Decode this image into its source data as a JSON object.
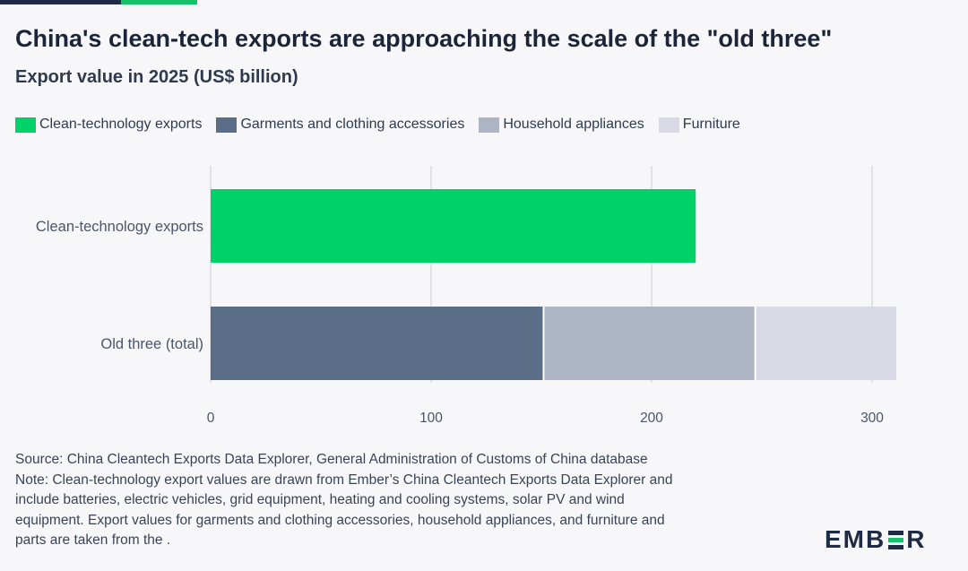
{
  "header": {
    "title": "China's clean-tech exports are approaching the scale of the \"old three\"",
    "subtitle": "Export value in 2025 (US$ billion)"
  },
  "legend": [
    {
      "label": "Clean-technology exports",
      "color": "#00d26a"
    },
    {
      "label": "Garments and clothing accessories",
      "color": "#5a6e87"
    },
    {
      "label": "Household appliances",
      "color": "#adb4c4"
    },
    {
      "label": "Furniture",
      "color": "#d9d9e6"
    }
  ],
  "chart_data": {
    "type": "bar",
    "orientation": "horizontal",
    "stacked": true,
    "categories": [
      "Clean-technology exports",
      "Old three (total)"
    ],
    "series": [
      {
        "name": "Clean-technology exports",
        "color": "#00d26a",
        "values": [
          220,
          0
        ]
      },
      {
        "name": "Garments and clothing accessories",
        "color": "#5a6e87",
        "values": [
          0,
          151
        ]
      },
      {
        "name": "Household appliances",
        "color": "#adb4c4",
        "values": [
          0,
          96
        ]
      },
      {
        "name": "Furniture",
        "color": "#d9d9e6",
        "values": [
          0,
          64
        ]
      }
    ],
    "xlim": [
      0,
      300
    ],
    "xticks": [
      0,
      100,
      200,
      300
    ],
    "grid": true,
    "legend_position": "top"
  },
  "footer": {
    "notes": [
      "Source: China Cleantech Exports Data Explorer, General Administration of Customs of China database",
      "Note: Clean-technology export values are drawn from Ember’s China Cleantech Exports Data Explorer and",
      "include batteries, electric vehicles, grid equipment, heating and cooling systems, solar PV and wind",
      "equipment. Export values for garments and clothing accessories, household appliances, and furniture and",
      "parts are taken from the ."
    ],
    "logo_text_left": "EMB",
    "logo_text_right": "R",
    "logo_colors": [
      "#1f2a44",
      "#18c26a",
      "#1f2a44"
    ]
  }
}
